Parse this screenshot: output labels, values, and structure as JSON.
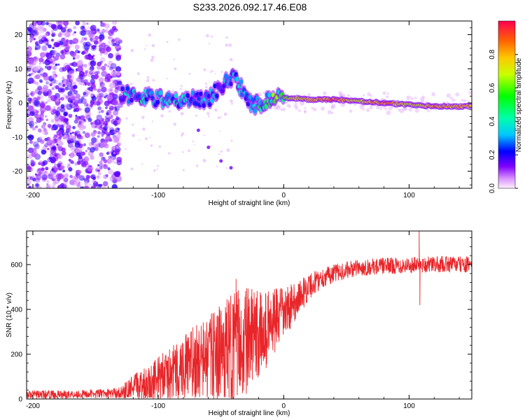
{
  "title": "S233.2026.092.17.46.E08",
  "colors": {
    "snr_line": "#e8262a",
    "axis": "#000000",
    "background": "#ffffff"
  },
  "chart_data": [
    {
      "type": "heatmap",
      "title": "S233.2026.092.17.46.E08",
      "xlabel": "Height of straight line (km)",
      "ylabel": "Frequency (Hz)",
      "xlim": [
        -205,
        150
      ],
      "ylim": [
        -25,
        24
      ],
      "xticks": [
        -200,
        -100,
        0,
        100
      ],
      "yticks": [
        -20,
        -10,
        0,
        10,
        20
      ],
      "xtick_labels": [
        "-200",
        "-100",
        "0",
        "100"
      ],
      "ytick_labels": [
        "-20",
        "-10",
        "0",
        "10",
        "20"
      ],
      "colorbar": {
        "label": "Normalized spectral amplitude",
        "range": [
          0,
          1
        ],
        "ticks": [
          0,
          0.2,
          0.4,
          0.6,
          0.8
        ],
        "tick_labels": [
          "0.0",
          "0.2",
          "0.4",
          "0.6",
          "0.8"
        ]
      },
      "noise_region": {
        "x_range": [
          -205,
          -130
        ],
        "freq_range": [
          -25,
          24
        ],
        "amplitude": 0.12
      },
      "ridge": [
        {
          "x": -130,
          "freq": 2.5,
          "amp": 0.3
        },
        {
          "x": -120,
          "freq": 2.0,
          "amp": 0.35
        },
        {
          "x": -105,
          "freq": 1.5,
          "amp": 0.35
        },
        {
          "x": -90,
          "freq": 0.5,
          "amp": 0.35
        },
        {
          "x": -75,
          "freq": 1.0,
          "amp": 0.3
        },
        {
          "x": -60,
          "freq": 1.0,
          "amp": 0.3
        },
        {
          "x": -50,
          "freq": 5.0,
          "amp": 0.25
        },
        {
          "x": -40,
          "freq": 8.0,
          "amp": 0.3
        },
        {
          "x": -32,
          "freq": 3.0,
          "amp": 0.35
        },
        {
          "x": -25,
          "freq": -1.0,
          "amp": 0.35
        },
        {
          "x": -15,
          "freq": 0.5,
          "amp": 0.45
        },
        {
          "x": -5,
          "freq": 1.5,
          "amp": 0.55
        },
        {
          "x": 5,
          "freq": 1.5,
          "amp": 0.7
        },
        {
          "x": 20,
          "freq": 1.0,
          "amp": 0.8
        },
        {
          "x": 40,
          "freq": 1.0,
          "amp": 0.9
        },
        {
          "x": 60,
          "freq": 0.5,
          "amp": 0.75
        },
        {
          "x": 80,
          "freq": 0.0,
          "amp": 0.9
        },
        {
          "x": 100,
          "freq": -0.5,
          "amp": 0.7
        },
        {
          "x": 120,
          "freq": -1.0,
          "amp": 0.85
        },
        {
          "x": 150,
          "freq": -1.0,
          "amp": 0.8
        }
      ],
      "streak": [
        {
          "x": -68,
          "freq": -8.0
        },
        {
          "x": -60,
          "freq": -13.0
        },
        {
          "x": -50,
          "freq": -17.0
        },
        {
          "x": -42,
          "freq": -19.0
        }
      ]
    },
    {
      "type": "line",
      "xlabel": "Height of straight line (km)",
      "ylabel": "SNR (10 * v/v)",
      "xlim": [
        -205,
        150
      ],
      "ylim": [
        0,
        750
      ],
      "xticks": [
        -200,
        -100,
        0,
        100
      ],
      "yticks": [
        0,
        200,
        400,
        600
      ],
      "xtick_labels": [
        "-200",
        "-100",
        "0",
        "100"
      ],
      "ytick_labels": [
        "0",
        "200",
        "400",
        "600"
      ],
      "series": [
        {
          "name": "SNR",
          "x": [
            -205,
            -180,
            -160,
            -140,
            -130,
            -120,
            -110,
            -100,
            -90,
            -80,
            -70,
            -60,
            -50,
            -40,
            -30,
            -20,
            -10,
            0,
            10,
            20,
            30,
            40,
            50,
            60,
            70,
            80,
            90,
            100,
            110,
            120,
            130,
            140,
            150
          ],
          "y": [
            20,
            20,
            22,
            25,
            28,
            50,
            70,
            90,
            110,
            140,
            160,
            180,
            200,
            230,
            260,
            280,
            330,
            380,
            440,
            500,
            540,
            560,
            575,
            585,
            590,
            595,
            595,
            598,
            600,
            600,
            602,
            600,
            600
          ],
          "noise_amplitude": [
            18,
            18,
            18,
            20,
            25,
            60,
            80,
            100,
            120,
            150,
            170,
            190,
            220,
            250,
            240,
            200,
            160,
            120,
            80,
            60,
            45,
            40,
            38,
            36,
            36,
            36,
            36,
            36,
            36,
            36,
            36,
            36,
            36
          ],
          "spikes": [
            {
              "x": -38,
              "y": 535
            },
            {
              "x": -28,
              "y": 410
            },
            {
              "x": -15,
              "y": 390
            },
            {
              "x": 5,
              "y": 480
            },
            {
              "x": 108,
              "y": 750
            },
            {
              "x": 108.6,
              "y": 420
            }
          ]
        }
      ]
    }
  ]
}
